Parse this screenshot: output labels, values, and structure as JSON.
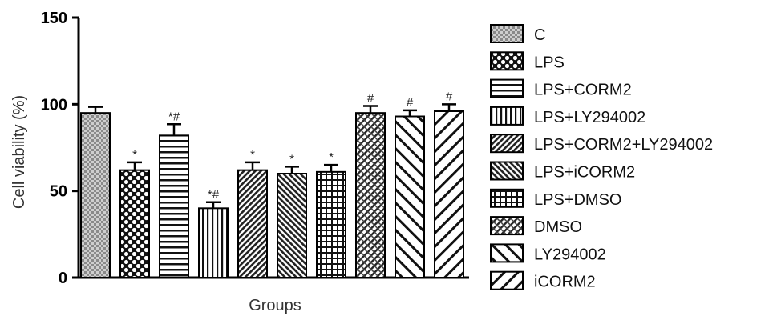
{
  "chart_data": {
    "type": "bar",
    "xlabel": "Groups",
    "ylabel": "Cell viability (%)",
    "ylim": [
      0,
      150
    ],
    "yticks": [
      "0",
      "50",
      "100",
      "150"
    ],
    "legend_position": "right",
    "grid": false,
    "categories": [
      "C",
      "LPS",
      "LPS+CORM2",
      "LPS+LY294002",
      "LPS+CORM2+LY294002",
      "LPS+iCORM2",
      "LPS+DMSO",
      "DMSO",
      "LY294002",
      "iCORM2"
    ],
    "values": [
      95,
      62,
      82,
      40,
      62,
      60,
      61,
      95,
      93,
      96
    ],
    "errors": [
      3.5,
      4.5,
      6.5,
      3.5,
      4.5,
      4,
      4,
      4,
      3.5,
      4
    ],
    "significance": [
      "",
      "*",
      "*#",
      "*#",
      "*",
      "*",
      "*",
      "#",
      "#",
      "#"
    ],
    "patterns": [
      "checker",
      "dots",
      "hlines",
      "vlines",
      "diag-fine",
      "diag-fine-alt",
      "grid",
      "crosshatch",
      "back-diag",
      "fwd-diag"
    ]
  }
}
